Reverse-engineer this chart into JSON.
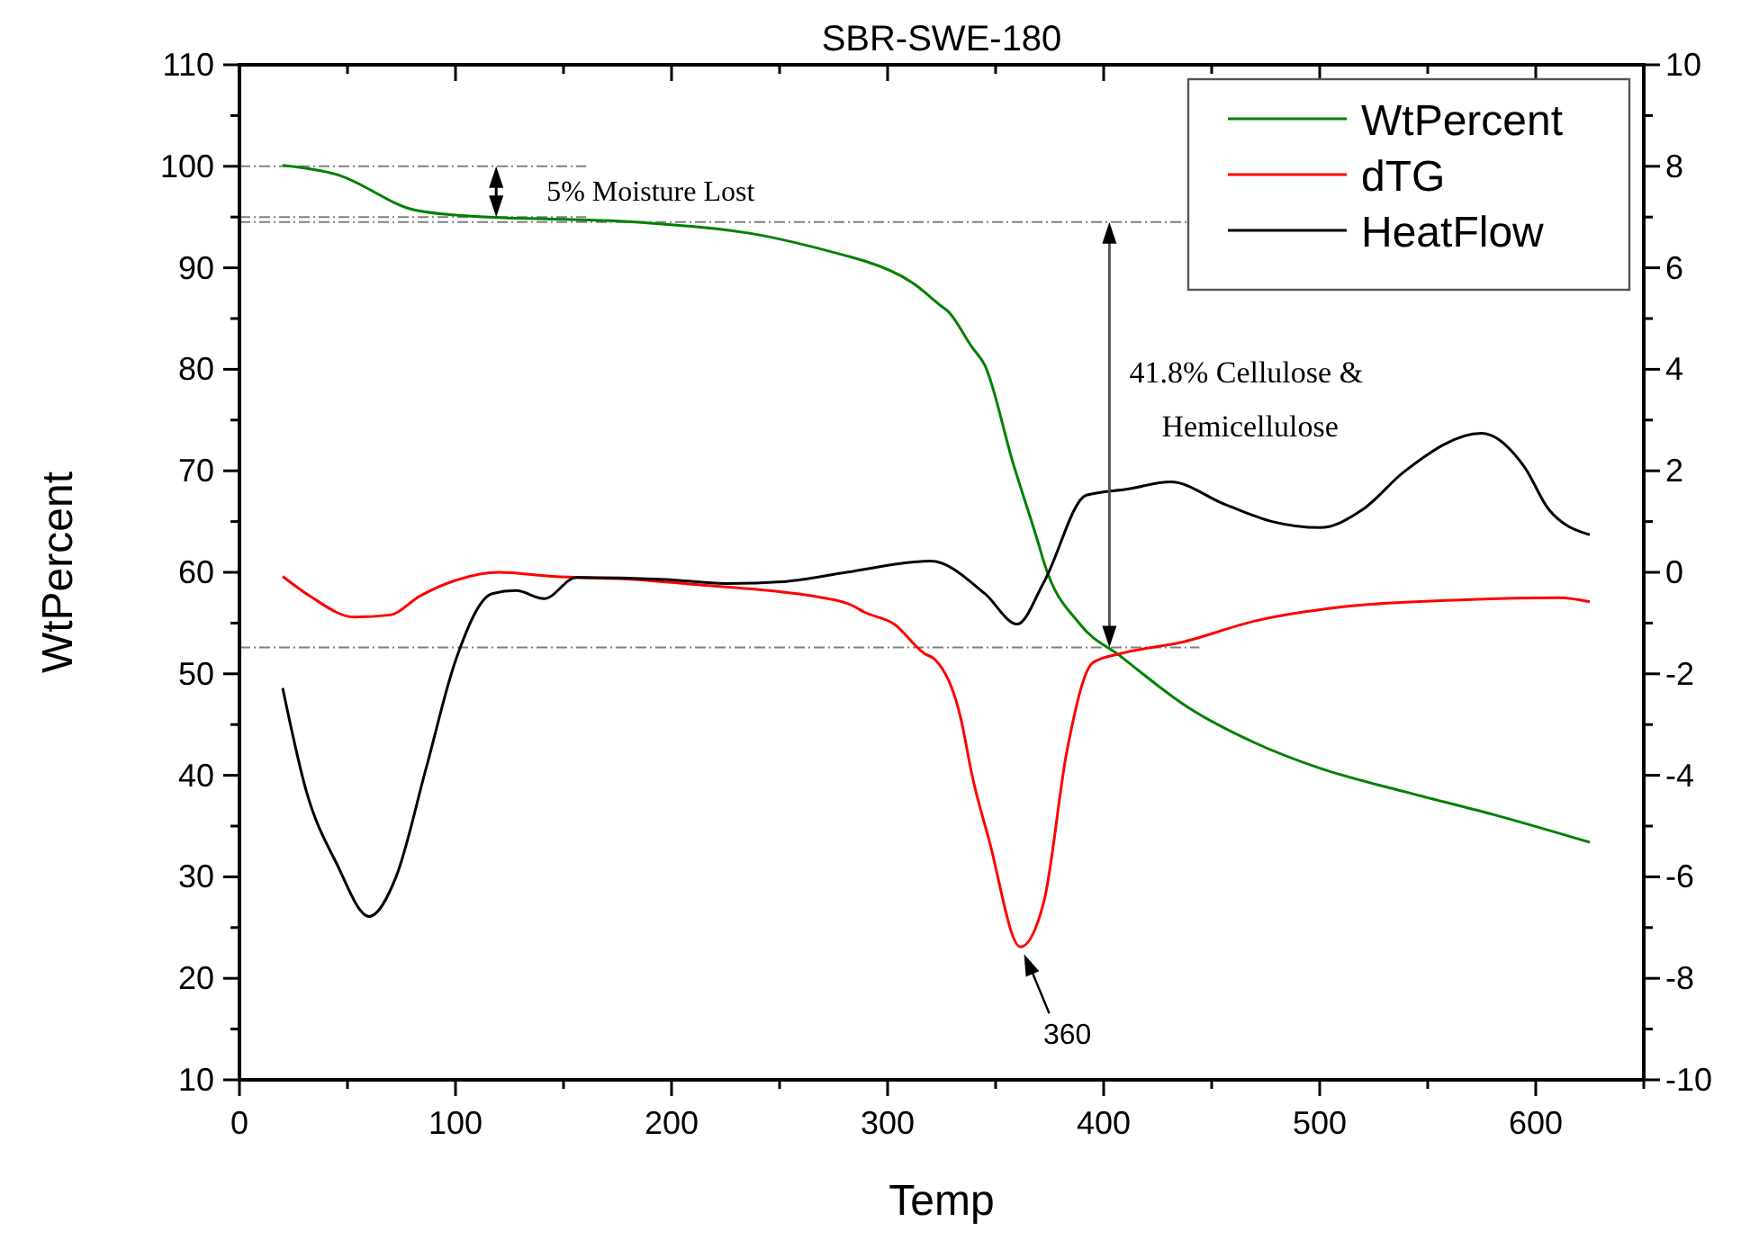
{
  "chart_data": {
    "type": "line",
    "title": "SBR-SWE-180",
    "xlabel": "Temp",
    "ylabel": "WtPercent",
    "legend": "top right",
    "line_style": "solid",
    "marker": "none",
    "grid": false,
    "xlim": [
      0,
      650
    ],
    "xticks": [
      0,
      {
        "value": 50,
        "label": null
      },
      100,
      {
        "value": 150,
        "label": null
      },
      200,
      {
        "value": 250,
        "label": null
      },
      300,
      {
        "value": 350,
        "label": null
      },
      400,
      {
        "value": 450,
        "label": null
      },
      500,
      {
        "value": 550,
        "label": null
      },
      600,
      {
        "value": 650,
        "label": null
      }
    ],
    "ylim": [
      10,
      110
    ],
    "yticks": [
      10,
      {
        "value": 15,
        "label": null
      },
      20,
      {
        "value": 25,
        "label": null
      },
      30,
      {
        "value": 35,
        "label": null
      },
      40,
      {
        "value": 45,
        "label": null
      },
      50,
      {
        "value": 55,
        "label": null
      },
      60,
      {
        "value": 65,
        "label": null
      },
      70,
      {
        "value": 75,
        "label": null
      },
      80,
      {
        "value": 85,
        "label": null
      },
      90,
      {
        "value": 95,
        "label": null
      },
      100,
      {
        "value": 105,
        "label": null
      },
      110
    ],
    "y2lim": [
      -10,
      10
    ],
    "y2ticks": [
      -10,
      {
        "value": -9,
        "label": null
      },
      -8,
      {
        "value": -7,
        "label": null
      },
      -6,
      {
        "value": -5,
        "label": null
      },
      -4,
      {
        "value": -3,
        "label": null
      },
      -2,
      {
        "value": -1,
        "label": null
      },
      0,
      {
        "value": 1,
        "label": null
      },
      2,
      {
        "value": 3,
        "label": null
      },
      4,
      {
        "value": 5,
        "label": null
      },
      6,
      {
        "value": 7,
        "label": null
      },
      8,
      {
        "value": 9,
        "label": null
      },
      10
    ],
    "series": [
      {
        "name": "WtPercent",
        "color": "#008000",
        "x": [
          20,
          45,
          81,
          106,
          183,
          239,
          284,
          289,
          311,
          325,
          328,
          339,
          345,
          358,
          370,
          372.5,
          389,
          408,
          439,
          470,
          500,
          539,
          581,
          625
        ],
        "values": [
          100.1,
          99.2,
          95.7,
          95.1,
          94.5,
          93.3,
          91.0,
          90.7,
          88.6,
          86.2,
          85.7,
          82.2,
          80.4,
          70.8,
          62.7,
          60.9,
          54.9,
          51.7,
          46.7,
          43.2,
          40.7,
          38.4,
          36.1,
          33.4
        ]
      },
      {
        "name": "dTG",
        "color": "#ff0000",
        "axis": "y2",
        "x": [
          20,
          33,
          53,
          70,
          83,
          100,
          120,
          145,
          183,
          211,
          245,
          267,
          284,
          289,
          303,
          317,
          322,
          334,
          339,
          347,
          361.5,
          372.5,
          383,
          395,
          408,
          436,
          470,
          511,
          567,
          611,
          625
        ],
        "values": [
          -0.08,
          -0.48,
          -0.88,
          -0.84,
          -0.48,
          -0.16,
          0,
          -0.08,
          -0.14,
          -0.24,
          -0.36,
          -0.48,
          -0.66,
          -0.78,
          -1.02,
          -1.6,
          -1.72,
          -2.9,
          -3.98,
          -5.28,
          -7.38,
          -6.46,
          -3.52,
          -1.78,
          -1.6,
          -1.38,
          -0.96,
          -0.68,
          -0.54,
          -0.5,
          -0.58
        ]
      },
      {
        "name": "HeatFlow",
        "color": "#000000",
        "axis": "y2",
        "x": [
          20,
          31,
          45,
          60,
          72.5,
          86.4,
          100,
          117,
          128,
          141,
          156,
          197.5,
          225,
          253,
          281,
          320,
          345,
          360,
          372.5,
          392,
          411,
          431,
          456,
          478,
          500,
          520,
          539,
          575,
          595,
          606,
          625
        ],
        "values": [
          -2.28,
          -4.32,
          -5.74,
          -6.78,
          -6.0,
          -3.86,
          -1.74,
          -0.42,
          -0.36,
          -0.52,
          -0.1,
          -0.14,
          -0.22,
          -0.18,
          0,
          0.22,
          -0.42,
          -1.02,
          -0.18,
          1.52,
          1.64,
          1.78,
          1.34,
          1.0,
          0.88,
          1.24,
          1.98,
          2.74,
          2.06,
          1.24,
          0.74
        ]
      }
    ],
    "ref_lines": [
      {
        "axis": "y",
        "value": 100,
        "color": "#808080",
        "line_style": "dashdot"
      },
      {
        "axis": "y",
        "value": 95,
        "color": "#808080",
        "line_style": "dashdot"
      },
      {
        "axis": "y",
        "value": 94.5,
        "color": "#808080",
        "line_style": "dashdot"
      },
      {
        "axis": "y",
        "value": 52.6,
        "color": "#808080",
        "line_style": "dashdot"
      }
    ],
    "annotations": [
      "5% Moisture Lost",
      "41.8% Cellulose & Hemicellulose",
      {
        "text": "360",
        "x": 361.5,
        "y": 23.1
      }
    ]
  }
}
